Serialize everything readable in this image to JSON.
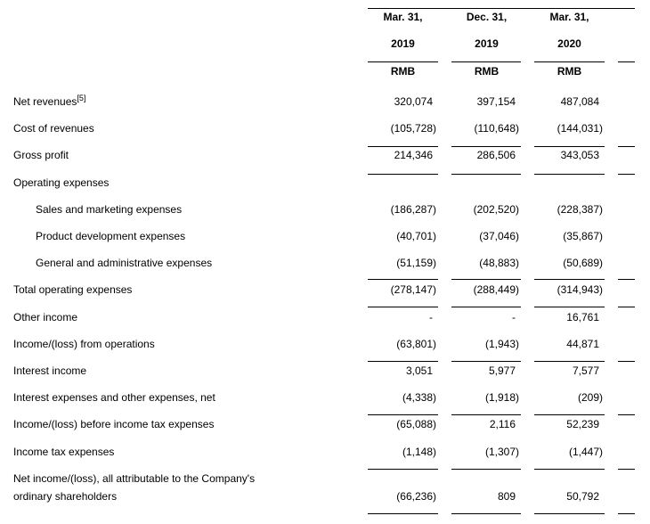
{
  "columns": [
    {
      "month": "Mar. 31,",
      "year": "2019",
      "unit": "RMB"
    },
    {
      "month": "Dec. 31,",
      "year": "2019",
      "unit": "RMB"
    },
    {
      "month": "Mar. 31,",
      "year": "2020",
      "unit": "RMB"
    }
  ],
  "rows": [
    {
      "label": "Net revenues",
      "note": "[5]",
      "values": [
        "320,074",
        "397,154",
        "487,084"
      ]
    },
    {
      "label": "Cost of revenues",
      "values": [
        "(105,728)",
        "(110,648)",
        "(144,031)"
      ]
    },
    {
      "label": "Gross profit",
      "values": [
        "214,346",
        "286,506",
        "343,053"
      ]
    },
    {
      "label": "Operating expenses",
      "values": [
        "",
        "",
        ""
      ]
    },
    {
      "label": "Sales and marketing expenses",
      "indent": true,
      "values": [
        "(186,287)",
        "(202,520)",
        "(228,387)"
      ]
    },
    {
      "label": "Product development expenses",
      "indent": true,
      "values": [
        "(40,701)",
        "(37,046)",
        "(35,867)"
      ]
    },
    {
      "label": "General and administrative expenses",
      "indent": true,
      "values": [
        "(51,159)",
        "(48,883)",
        "(50,689)"
      ]
    },
    {
      "label": "Total operating expenses",
      "values": [
        "(278,147)",
        "(288,449)",
        "(314,943)"
      ]
    },
    {
      "label": "Other income",
      "values": [
        "-",
        "-",
        "16,761"
      ]
    },
    {
      "label": "Income/(loss) from operations",
      "values": [
        "(63,801)",
        "(1,943)",
        "44,871"
      ]
    },
    {
      "label": "Interest income",
      "values": [
        "3,051",
        "5,977",
        "7,577"
      ]
    },
    {
      "label": "Interest expenses and other expenses, net",
      "values": [
        "(4,338)",
        "(1,918)",
        "(209)"
      ]
    },
    {
      "label": "Income/(loss) before income tax expenses",
      "values": [
        "(65,088)",
        "2,116",
        "52,239"
      ]
    },
    {
      "label": "Income tax expenses",
      "values": [
        "(1,148)",
        "(1,307)",
        "(1,447)"
      ]
    },
    {
      "label": "Net income/(loss), all attributable to the Company's",
      "label2": "ordinary shareholders",
      "values": [
        "(66,236)",
        "809",
        "50,792"
      ]
    }
  ]
}
